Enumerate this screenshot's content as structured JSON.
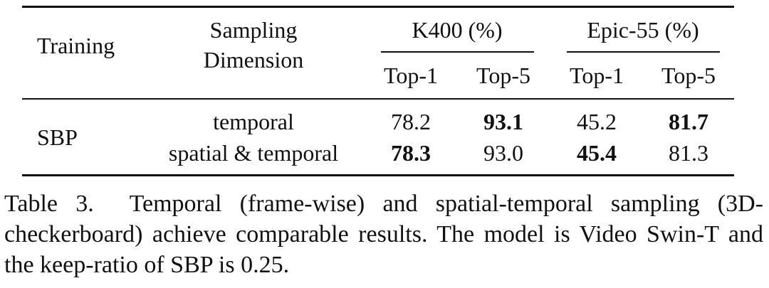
{
  "table": {
    "header": {
      "training": "Training",
      "sampling_line1": "Sampling",
      "sampling_line2": "Dimension",
      "group_k400": "K400 (%)",
      "group_epic": "Epic-55 (%)",
      "top1": "Top-1",
      "top5": "Top-5"
    },
    "training_value": "SBP",
    "rows": [
      {
        "sampling": "temporal",
        "k400_top1": "78.2",
        "k400_top5": "93.1",
        "epic_top1": "45.2",
        "epic_top5": "81.7",
        "bold": [
          "k400_top5",
          "epic_top5"
        ]
      },
      {
        "sampling": "spatial & temporal",
        "k400_top1": "78.3",
        "k400_top5": "93.0",
        "epic_top1": "45.4",
        "epic_top5": "81.3",
        "bold": [
          "k400_top1",
          "epic_top1"
        ]
      }
    ]
  },
  "caption": {
    "label": "Table 3.",
    "text": "Temporal (frame-wise) and spatial-temporal sampling (3D-checkerboard) achieve comparable results.  The model is Video Swin-T and the keep-ratio of SBP is 0.25."
  }
}
